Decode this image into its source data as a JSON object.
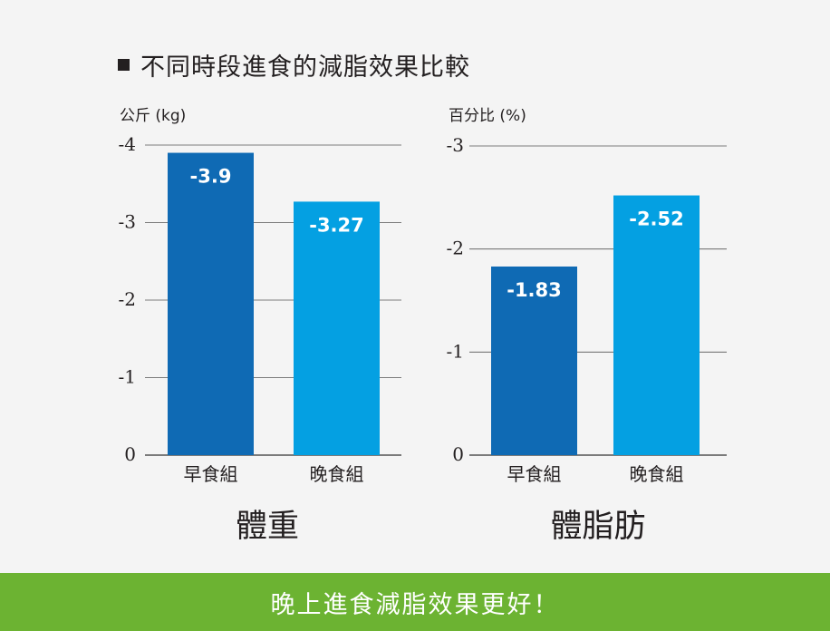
{
  "title": "不同時段進食的減脂效果比較",
  "footer": "晚上進食減脂效果更好！",
  "colors": {
    "bar_dark": "#0f6ab4",
    "bar_light": "#04a0e2",
    "footer_bg": "#6cb332",
    "grid": "#555555",
    "text": "#231f20"
  },
  "chart_data": [
    {
      "type": "bar",
      "title": "體重",
      "unit_label": "公斤 (kg)",
      "categories": [
        "早食組",
        "晚食組"
      ],
      "values": [
        -3.9,
        -3.27
      ],
      "value_labels": [
        "-3.9",
        "-3.27"
      ],
      "ylim": [
        0,
        -4
      ],
      "yticks": [
        "0",
        "-1",
        "-2",
        "-3",
        "-4"
      ],
      "bar_colors": [
        "dark",
        "light"
      ]
    },
    {
      "type": "bar",
      "title": "體脂肪",
      "unit_label": "百分比 (%)",
      "categories": [
        "早食組",
        "晚食組"
      ],
      "values": [
        -1.83,
        -2.52
      ],
      "value_labels": [
        "-1.83",
        "-2.52"
      ],
      "ylim": [
        0,
        -3
      ],
      "yticks": [
        "0",
        "-1",
        "-2",
        "-3"
      ],
      "bar_colors": [
        "dark",
        "light"
      ]
    }
  ]
}
